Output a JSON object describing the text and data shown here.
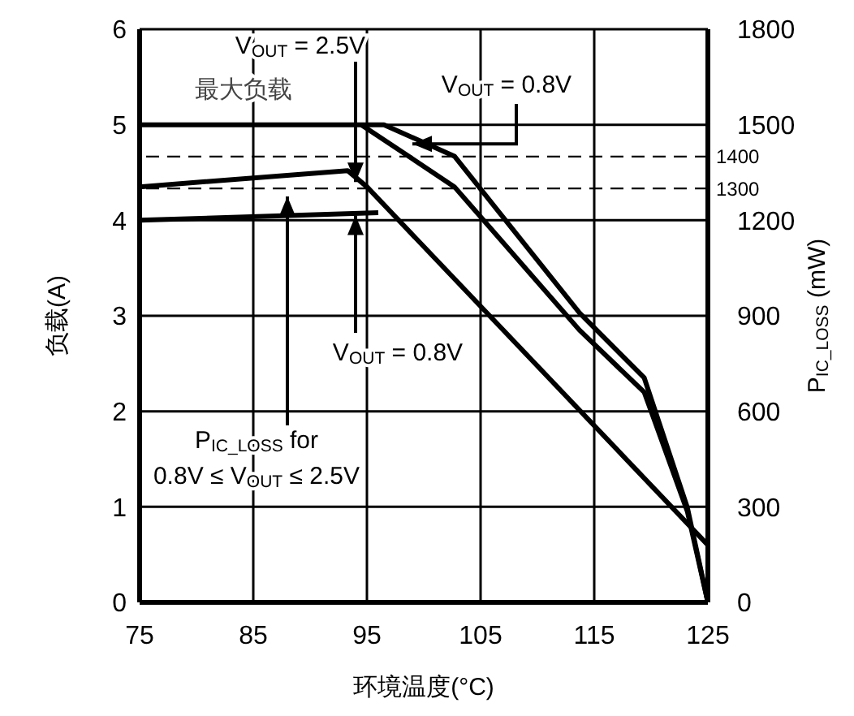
{
  "chart_data": {
    "type": "line",
    "xlabel": "环境温度(°C)",
    "ylabel": "负载(A)",
    "y2label": "P$_{IC_LOSS}$ (mW)",
    "xlim": [
      75,
      125
    ],
    "xticks": [
      75,
      85,
      95,
      105,
      115,
      125
    ],
    "ylim": [
      0,
      6
    ],
    "yticks": [
      0,
      1,
      2,
      3,
      4,
      5,
      6
    ],
    "y2lim": [
      0,
      1800
    ],
    "y2ticks": [
      0,
      300,
      600,
      900,
      1200,
      1500,
      1800
    ],
    "grid": true,
    "series": [
      {
        "color": "#000000",
        "x": [
          75,
          96.5,
          102.7,
          113.7,
          119.4,
          123.2,
          125
        ],
        "values": [
          5,
          5,
          4.67,
          3.03,
          2.35,
          0.99,
          0
        ]
      },
      {
        "color": "#000000",
        "x": [
          94.5,
          102.7,
          113.7,
          119.4,
          123.2,
          125
        ],
        "values": [
          5,
          4.35,
          2.85,
          2.2,
          0.95,
          0
        ]
      },
      {
        "color": "#000000",
        "x": [
          75,
          93.3,
          95,
          125
        ],
        "values": [
          4.35,
          4.52,
          4.35,
          0.6
        ]
      },
      {
        "color": "#000000",
        "x": [
          75,
          96
        ],
        "values": [
          4.0,
          4.08
        ]
      }
    ],
    "ref_lines": [
      {
        "axis": "y2",
        "value": 1400,
        "label": "1400",
        "line_style": "dashed"
      },
      {
        "axis": "y2",
        "value": 1300,
        "label": "1300",
        "line_style": "dashed"
      }
    ],
    "annotations": [
      "最大负载",
      {
        "text": "V$_{OUT}$ = 2.5V",
        "x": 94,
        "y": 4.4
      },
      {
        "text": "V$_{OUT}$ = 0.8V",
        "x": 99,
        "y": 4.8
      },
      {
        "text": "V$_{OUT}$ = 0.8V",
        "x": 94,
        "y": 4.05
      },
      {
        "text": "P$_{IC_LOSS}$ for",
        "x": 88,
        "y": 4.25
      },
      "0.8V ≤ V$_{OUT}$ ≤ 2.5V"
    ]
  }
}
